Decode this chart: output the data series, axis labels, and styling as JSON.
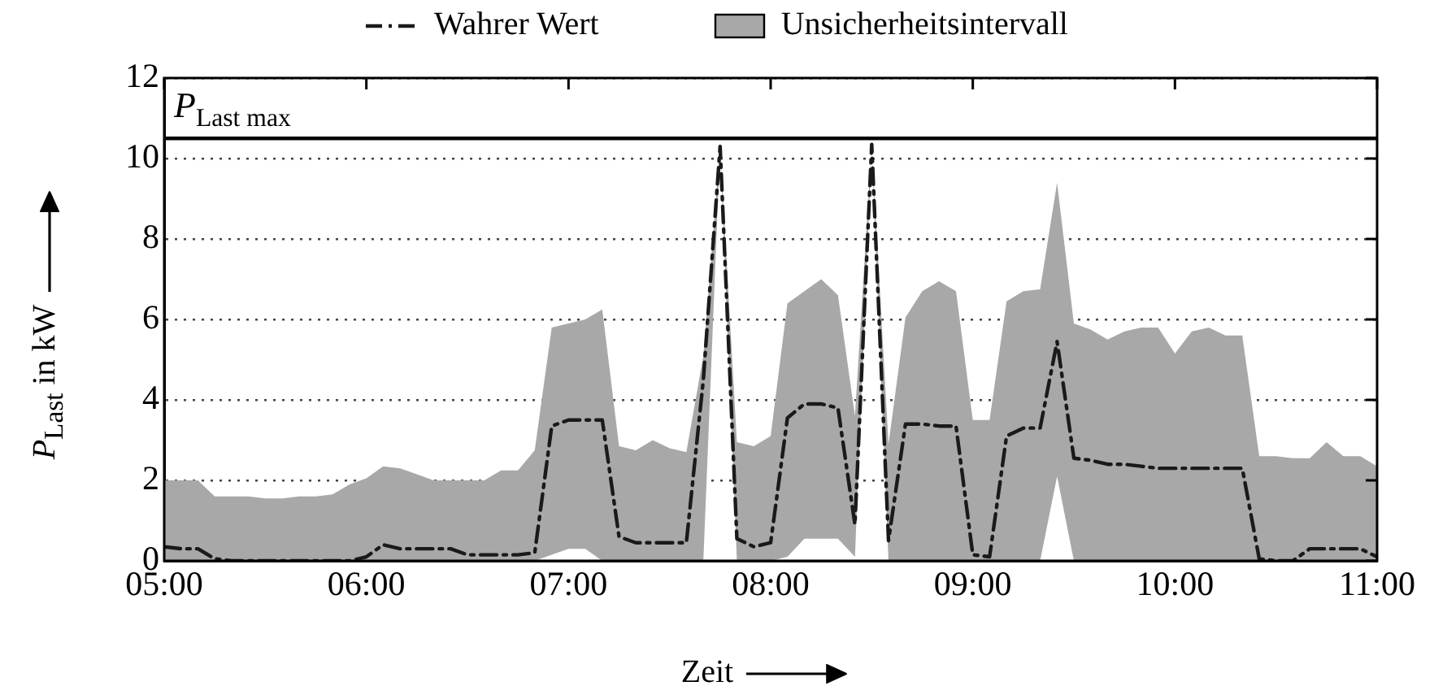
{
  "chart_data": {
    "type": "line",
    "xlabel": "Zeit",
    "ylabel": "P$_{Last}$ in kW",
    "annotations": [
      "Unsicherheitsintervall"
    ],
    "x": [
      5.0,
      5.083,
      5.167,
      5.25,
      5.333,
      5.417,
      5.5,
      5.583,
      5.667,
      5.75,
      5.833,
      5.917,
      6.0,
      6.083,
      6.167,
      6.25,
      6.333,
      6.417,
      6.5,
      6.583,
      6.667,
      6.75,
      6.833,
      6.917,
      7.0,
      7.083,
      7.167,
      7.25,
      7.333,
      7.417,
      7.5,
      7.583,
      7.667,
      7.75,
      7.833,
      7.917,
      8.0,
      8.083,
      8.167,
      8.25,
      8.333,
      8.417,
      8.5,
      8.583,
      8.667,
      8.75,
      8.833,
      8.917,
      9.0,
      9.083,
      9.167,
      9.25,
      9.333,
      9.417,
      9.5,
      9.583,
      9.667,
      9.75,
      9.833,
      9.917,
      10.0,
      10.083,
      10.167,
      10.25,
      10.333,
      10.417,
      10.5,
      10.583,
      10.667,
      10.75,
      10.833,
      10.917,
      11.0
    ],
    "series": [
      {
        "name": "Wahrer Wert",
        "color": "#1a1a1a",
        "line_style": "dashed",
        "values": [
          0.35,
          0.3,
          0.3,
          0.05,
          0,
          0,
          0,
          0,
          0,
          0,
          0,
          0,
          0.1,
          0.4,
          0.3,
          0.3,
          0.3,
          0.3,
          0.15,
          0.15,
          0.15,
          0.15,
          0.2,
          3.35,
          3.5,
          3.5,
          3.5,
          0.6,
          0.45,
          0.45,
          0.45,
          0.45,
          4.5,
          10.3,
          0.55,
          0.35,
          0.45,
          3.55,
          3.9,
          3.9,
          3.8,
          0.9,
          10.35,
          0.5,
          3.4,
          3.4,
          3.35,
          3.35,
          0.15,
          0.1,
          3.1,
          3.3,
          3.3,
          5.45,
          2.55,
          2.5,
          2.4,
          2.4,
          2.35,
          2.3,
          2.3,
          2.3,
          2.3,
          2.3,
          2.3,
          0.05,
          0,
          0,
          0.3,
          0.3,
          0.3,
          0.3,
          0.1
        ],
        "upper": [
          2.0,
          2.0,
          2.0,
          1.6,
          1.6,
          1.6,
          1.55,
          1.55,
          1.6,
          1.6,
          1.65,
          1.9,
          2.05,
          2.35,
          2.3,
          2.15,
          2.0,
          2.0,
          2.0,
          2.0,
          2.25,
          2.25,
          2.75,
          5.8,
          5.9,
          6.0,
          6.25,
          2.85,
          2.75,
          3.0,
          2.8,
          2.7,
          5.1,
          10.3,
          2.95,
          2.85,
          3.1,
          6.4,
          6.7,
          7.0,
          6.6,
          3.6,
          10.35,
          2.9,
          6.05,
          6.7,
          6.95,
          6.7,
          3.5,
          3.5,
          6.45,
          6.7,
          6.75,
          9.4,
          5.9,
          5.75,
          5.5,
          5.7,
          5.8,
          5.8,
          5.15,
          5.7,
          5.8,
          5.6,
          5.6,
          2.6,
          2.6,
          2.55,
          2.55,
          2.95,
          2.6,
          2.6,
          2.35
        ],
        "lower": [
          0,
          0,
          0,
          0,
          0,
          0,
          0,
          0,
          0,
          0,
          0,
          0,
          0,
          0,
          0,
          0,
          0,
          0,
          0,
          0,
          0,
          0,
          0,
          0.15,
          0.3,
          0.3,
          0,
          0,
          0,
          0,
          0,
          0,
          0,
          10.3,
          0,
          0,
          0,
          0.1,
          0.55,
          0.55,
          0.55,
          0.1,
          10.35,
          0,
          0,
          0,
          0,
          0,
          0,
          0,
          0,
          0,
          0,
          2.1,
          0,
          0,
          0,
          0,
          0,
          0,
          0,
          0,
          0,
          0,
          0,
          0,
          0,
          0,
          0,
          0,
          0,
          0,
          0
        ]
      }
    ],
    "ref_lines": [
      {
        "axis": "y",
        "value": 10.5,
        "label": "P$_{Last max}$",
        "color": "#000000"
      }
    ],
    "xlim": [
      5,
      11
    ],
    "xticks": [
      {
        "value": 5,
        "label": "05:00"
      },
      {
        "value": 6,
        "label": "06:00"
      },
      {
        "value": 7,
        "label": "07:00"
      },
      {
        "value": 8,
        "label": "08:00"
      },
      {
        "value": 9,
        "label": "09:00"
      },
      {
        "value": 10,
        "label": "10:00"
      },
      {
        "value": 11,
        "label": "11:00"
      }
    ],
    "ylim": [
      0,
      12
    ],
    "yticks": [
      0,
      2,
      4,
      6,
      8,
      10,
      12
    ],
    "grid": "y",
    "legend": "top",
    "marker": "none"
  }
}
